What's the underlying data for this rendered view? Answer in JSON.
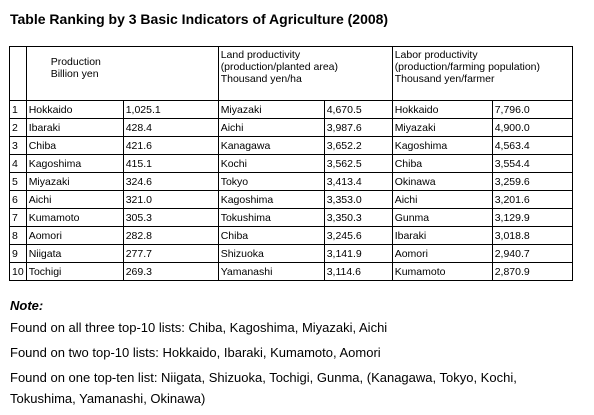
{
  "title": "Table Ranking by 3 Basic Indicators of Agriculture (2008)",
  "headers": {
    "production": [
      "Production",
      "Billion yen"
    ],
    "land": [
      "Land productivity",
      "(production/planted area)",
      "Thousand yen/ha"
    ],
    "labor": [
      "Labor productivity",
      "(production/farming population)",
      "Thousand yen/farmer"
    ]
  },
  "rows": [
    {
      "rank": "1",
      "p_name": "Hokkaido",
      "p_val": "1,025.1",
      "l_name": "Miyazaki",
      "l_val": "4,670.5",
      "w_name": "Hokkaido",
      "w_val": "7,796.0"
    },
    {
      "rank": "2",
      "p_name": "Ibaraki",
      "p_val": "428.4",
      "l_name": "Aichi",
      "l_val": "3,987.6",
      "w_name": "Miyazaki",
      "w_val": "4,900.0"
    },
    {
      "rank": "3",
      "p_name": "Chiba",
      "p_val": "421.6",
      "l_name": "Kanagawa",
      "l_val": "3,652.2",
      "w_name": "Kagoshima",
      "w_val": "4,563.4"
    },
    {
      "rank": "4",
      "p_name": "Kagoshima",
      "p_val": "415.1",
      "l_name": "Kochi",
      "l_val": "3,562.5",
      "w_name": "Chiba",
      "w_val": "3,554.4"
    },
    {
      "rank": "5",
      "p_name": "Miyazaki",
      "p_val": "324.6",
      "l_name": "Tokyo",
      "l_val": "3,413.4",
      "w_name": "Okinawa",
      "w_val": "3,259.6"
    },
    {
      "rank": "6",
      "p_name": "Aichi",
      "p_val": "321.0",
      "l_name": "Kagoshima",
      "l_val": "3,353.0",
      "w_name": "Aichi",
      "w_val": "3,201.6"
    },
    {
      "rank": "7",
      "p_name": "Kumamoto",
      "p_val": "305.3",
      "l_name": "Tokushima",
      "l_val": "3,350.3",
      "w_name": "Gunma",
      "w_val": "3,129.9"
    },
    {
      "rank": "8",
      "p_name": "Aomori",
      "p_val": "282.8",
      "l_name": "Chiba",
      "l_val": "3,245.6",
      "w_name": "Ibaraki",
      "w_val": "3,018.8"
    },
    {
      "rank": "9",
      "p_name": "Niigata",
      "p_val": "277.7",
      "l_name": "Shizuoka",
      "l_val": "3,141.9",
      "w_name": "Aomori",
      "w_val": "2,940.7"
    },
    {
      "rank": "10",
      "p_name": "Tochigi",
      "p_val": "269.3",
      "l_name": "Yamanashi",
      "l_val": "3,114.6",
      "w_name": "Kumamoto",
      "w_val": "2,870.9"
    }
  ],
  "note": {
    "title": "Note:",
    "line1": "Found on all three top-10 lists: Chiba, Kagoshima, Miyazaki, Aichi",
    "line2": "Found on two top-10 lists: Hokkaido, Ibaraki, Kumamoto, Aomori",
    "line3": "Found on one top-ten list: Niigata, Shizuoka, Tochigi, Gunma, (Kanagawa, Tokyo, Kochi,",
    "line4": "Tokushima, Yamanashi, Okinawa)"
  }
}
